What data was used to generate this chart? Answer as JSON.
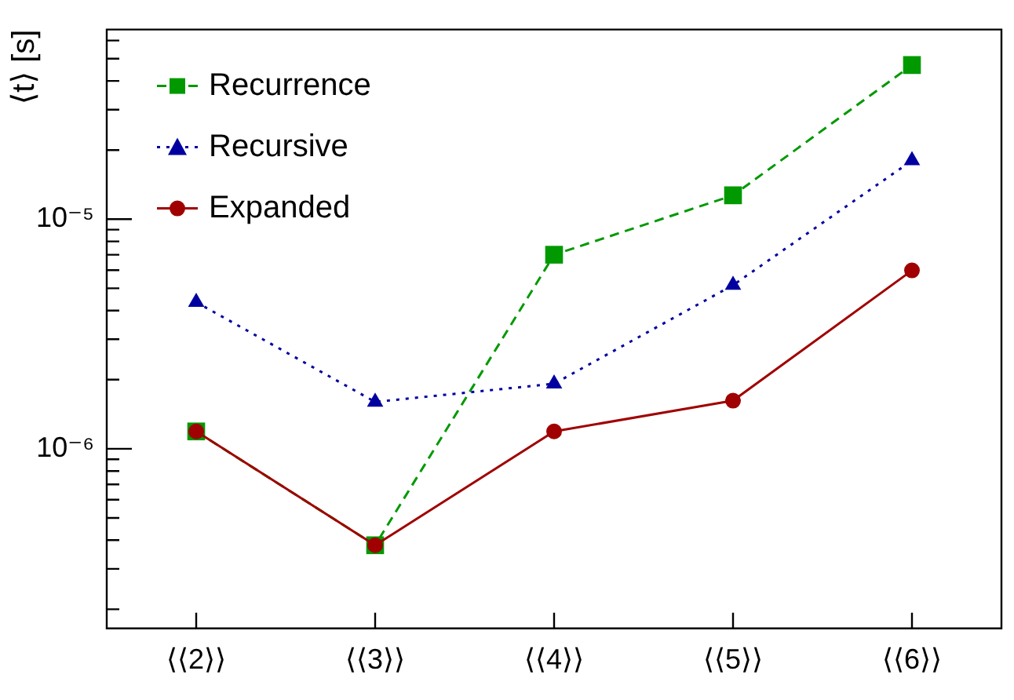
{
  "chart_data": {
    "type": "line",
    "ylabel": "⟨t⟩ [s]",
    "categories": [
      "⟨⟨2⟩⟩",
      "⟨⟨3⟩⟩",
      "⟨⟨4⟩⟩",
      "⟨⟨5⟩⟩",
      "⟨⟨6⟩⟩"
    ],
    "log": "y",
    "ylim": [
      1.65e-07,
      6.7e-05
    ],
    "yticks": [
      {
        "value": 2e-07,
        "label": null
      },
      {
        "value": 3e-07,
        "label": null
      },
      {
        "value": 4e-07,
        "label": null
      },
      {
        "value": 5e-07,
        "label": null
      },
      {
        "value": 6e-07,
        "label": null
      },
      {
        "value": 7e-07,
        "label": null
      },
      {
        "value": 8e-07,
        "label": null
      },
      {
        "value": 9e-07,
        "label": null
      },
      {
        "value": 1e-06,
        "label": "10⁻⁶"
      },
      {
        "value": 2e-06,
        "label": null
      },
      {
        "value": 3e-06,
        "label": null
      },
      {
        "value": 4e-06,
        "label": null
      },
      {
        "value": 5e-06,
        "label": null
      },
      {
        "value": 6e-06,
        "label": null
      },
      {
        "value": 7e-06,
        "label": null
      },
      {
        "value": 8e-06,
        "label": null
      },
      {
        "value": 9e-06,
        "label": null
      },
      {
        "value": 1e-05,
        "label": "10⁻⁵"
      },
      {
        "value": 2e-05,
        "label": null
      },
      {
        "value": 3e-05,
        "label": null
      },
      {
        "value": 4e-05,
        "label": null
      },
      {
        "value": 5e-05,
        "label": null
      },
      {
        "value": 6e-05,
        "label": null
      }
    ],
    "grid": false,
    "legend": "top left",
    "series": [
      {
        "name": "Recurrence",
        "color": "#009900",
        "marker": "square",
        "line_style": "dashed",
        "values": [
          1.19e-06,
          3.8e-07,
          7e-06,
          1.27e-05,
          4.69e-05
        ]
      },
      {
        "name": "Recursive",
        "color": "#0000a0",
        "marker": "triangle",
        "line_style": "dotted",
        "values": [
          4.35e-06,
          1.6e-06,
          1.92e-06,
          5.16e-06,
          1.8e-05
        ]
      },
      {
        "name": "Expanded",
        "color": "#a00000",
        "marker": "circle",
        "line_style": "solid",
        "values": [
          1.19e-06,
          3.8e-07,
          1.19e-06,
          1.62e-06,
          5.98e-06
        ]
      }
    ]
  }
}
